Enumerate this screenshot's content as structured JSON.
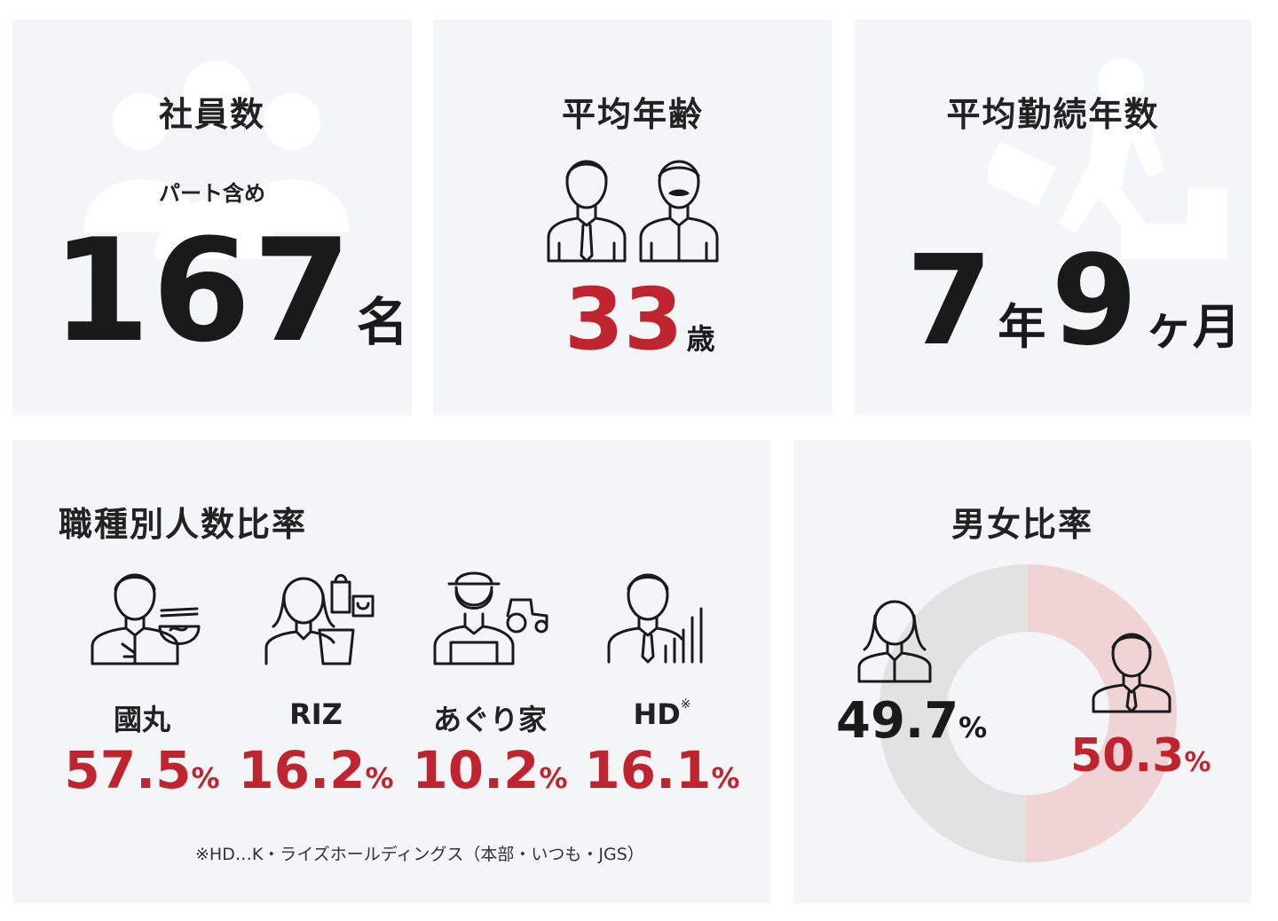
{
  "employees": {
    "title": "社員数",
    "note": "パート含め",
    "value": "167",
    "unit": "名"
  },
  "avg_age": {
    "title": "平均年齢",
    "value": "33",
    "unit": "歳"
  },
  "tenure": {
    "title": "平均勤続年数",
    "years": "7",
    "years_unit": "年",
    "months": "9",
    "months_unit": "ヶ月"
  },
  "jobs": {
    "title": "職種別人数比率",
    "items": [
      {
        "name": "國丸",
        "value": "57.5",
        "unit": "%"
      },
      {
        "name": "RIZ",
        "value": "16.2",
        "unit": "%"
      },
      {
        "name": "あぐり家",
        "value": "10.2",
        "unit": "%"
      },
      {
        "name": "HD",
        "mark": "※",
        "value": "16.1",
        "unit": "%"
      }
    ],
    "footnote": "※HD…K・ライズホールディングス（本部・いつも・JGS）"
  },
  "gender": {
    "title": "男女比率",
    "female": {
      "value": "49.7",
      "unit": "%"
    },
    "male": {
      "value": "50.3",
      "unit": "%"
    }
  },
  "chart_data": {
    "type": "pie",
    "categories": [
      "female",
      "male"
    ],
    "values": [
      49.7,
      50.3
    ],
    "colors": [
      "#e2e2e2",
      "#efd3d5"
    ]
  },
  "colors": {
    "accent": "#c0252f",
    "card": "#f4f5f7",
    "text": "#1a1a1a"
  }
}
